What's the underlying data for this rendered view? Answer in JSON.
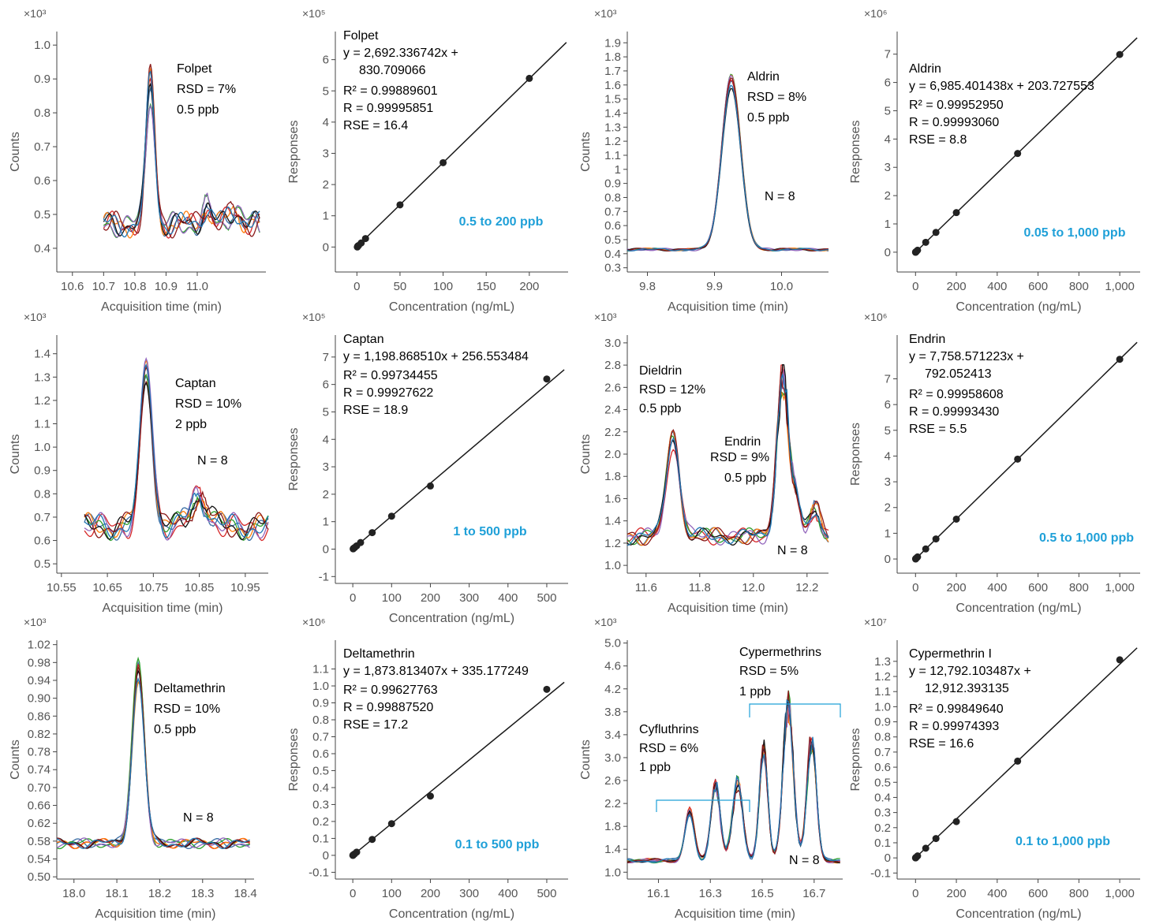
{
  "axis_color": "#444444",
  "tick_color": "#555555",
  "text_color": "#000000",
  "range_color": "#1fa0d8",
  "fit_color": "#1a1a1a",
  "trace_colors": [
    "#3a6ea5",
    "#d62728",
    "#2ca02c",
    "#ff7f0e",
    "#9467bd",
    "#111111",
    "#8b1a1a",
    "#1f77b4"
  ],
  "chart_data": [
    {
      "id": "folpet-chrom",
      "type": "line",
      "chart_kind": "chromatogram",
      "multiplier": "×10³",
      "ylabel": "Counts",
      "xlabel": "Acquisition time (min)",
      "xlim": [
        10.55,
        11.22
      ],
      "ylim": [
        0.33,
        1.04
      ],
      "xticks": [
        10.6,
        10.7,
        10.8,
        10.9,
        11.0
      ],
      "xtick_labels": [
        "10.6",
        "10.7",
        "10.8",
        "10.9",
        "11.0"
      ],
      "yticks": [
        0.4,
        0.5,
        0.6,
        0.7,
        0.8,
        0.9,
        1.0
      ],
      "ytick_labels": [
        "0.4",
        "0.5",
        "0.6",
        "0.7",
        "0.8",
        "0.9",
        "1.0"
      ],
      "trace_range": [
        10.7,
        11.2
      ],
      "baseline": 0.47,
      "noise": 0.04,
      "peaks": [
        {
          "x": 10.85,
          "h": 0.42,
          "w": 0.014
        },
        {
          "x": 11.03,
          "h": 0.05,
          "w": 0.015
        },
        {
          "x": 11.12,
          "h": 0.04,
          "w": 0.02
        }
      ],
      "annotations": [
        "Folpet",
        "RSD = 7%",
        "0.5 ppb"
      ]
    },
    {
      "id": "folpet-cal",
      "type": "scatter",
      "chart_kind": "calibration",
      "multiplier": "×10⁵",
      "ylabel": "Responses",
      "xlabel": "Concentration (ng/mL)",
      "xlim": [
        -25,
        245
      ],
      "ylim": [
        -0.8,
        6.9
      ],
      "xticks": [
        0,
        50,
        100,
        150,
        200
      ],
      "xtick_labels": [
        "0",
        "50",
        "100",
        "150",
        "200"
      ],
      "yticks": [
        0,
        1,
        2,
        3,
        4,
        5,
        6
      ],
      "ytick_labels": [
        "0",
        "1",
        "2",
        "3",
        "4",
        "5",
        "6"
      ],
      "points": [
        [
          0.5,
          0.0
        ],
        [
          1,
          0.03
        ],
        [
          2,
          0.05
        ],
        [
          5,
          0.13
        ],
        [
          10,
          0.27
        ],
        [
          50,
          1.35
        ],
        [
          100,
          2.7
        ],
        [
          200,
          5.4
        ]
      ],
      "fit": {
        "slope": 0.02692336742,
        "intercept": 0.00830709066,
        "x_range": [
          -2,
          243
        ]
      },
      "equation": [
        "Folpet",
        "y = 2,692.336742x +",
        "830.709066",
        "R² = 0.99889601",
        "R = 0.99995851",
        "RSE = 16.4"
      ],
      "range_label": "0.5 to 200 ppb"
    },
    {
      "id": "aldrin-chrom",
      "type": "line",
      "chart_kind": "chromatogram",
      "multiplier": "×10³",
      "ylabel": "Counts",
      "xlabel": "Acquisition time (min)",
      "xlim": [
        9.77,
        10.07
      ],
      "ylim": [
        0.27,
        1.98
      ],
      "xticks": [
        9.8,
        9.9,
        10.0
      ],
      "xtick_labels": [
        "9.8",
        "9.9",
        "10.0"
      ],
      "yticks": [
        0.3,
        0.4,
        0.5,
        0.6,
        0.7,
        0.8,
        0.9,
        1.0,
        1.1,
        1.2,
        1.3,
        1.4,
        1.5,
        1.6,
        1.7,
        1.8,
        1.9
      ],
      "ytick_labels": [
        "0.3",
        "0.4",
        "0.5",
        "0.6",
        "0.7",
        "0.8",
        "0.9",
        "1",
        "1.1",
        "1.2",
        "1.3",
        "1.4",
        "1.5",
        "1.6",
        "1.7",
        "1.8",
        "1.9"
      ],
      "trace_range": [
        9.77,
        10.07
      ],
      "baseline": 0.43,
      "noise": 0.01,
      "peaks": [
        {
          "x": 9.925,
          "h": 1.17,
          "w": 0.014
        }
      ],
      "annotations": [
        "Aldrin",
        "RSD = 8%",
        "0.5 ppb",
        "N = 8"
      ]
    },
    {
      "id": "aldrin-cal",
      "type": "scatter",
      "chart_kind": "calibration",
      "multiplier": "×10⁶",
      "ylabel": "Responses",
      "xlabel": "Concentration (ng/mL)",
      "xlim": [
        -90,
        1100
      ],
      "ylim": [
        -0.7,
        7.8
      ],
      "xticks": [
        0,
        200,
        400,
        600,
        800,
        1000
      ],
      "xtick_labels": [
        "0",
        "200",
        "400",
        "600",
        "800",
        "1,000"
      ],
      "yticks": [
        0,
        1,
        2,
        3,
        4,
        5,
        6,
        7
      ],
      "ytick_labels": [
        "0",
        "1",
        "2",
        "3",
        "4",
        "5",
        "6",
        "7"
      ],
      "points": [
        [
          0.05,
          0.0
        ],
        [
          0.5,
          0.0
        ],
        [
          1,
          0.01
        ],
        [
          2,
          0.01
        ],
        [
          5,
          0.03
        ],
        [
          10,
          0.07
        ],
        [
          50,
          0.35
        ],
        [
          100,
          0.7
        ],
        [
          200,
          1.4
        ],
        [
          500,
          3.49
        ],
        [
          1000,
          6.99
        ]
      ],
      "fit": {
        "slope": 0.006985401438,
        "intercept": 0.000203727553,
        "x_range": [
          -5,
          1085
        ]
      },
      "equation": [
        "Aldrin",
        "y = 6,985.401438x + 203.727553",
        "R² = 0.99952950",
        "R = 0.99993060",
        "RSE = 8.8"
      ],
      "range_label": "0.05 to 1,000 ppb"
    },
    {
      "id": "captan-chrom",
      "type": "line",
      "chart_kind": "chromatogram",
      "multiplier": "×10³",
      "ylabel": "Counts",
      "xlabel": "Acquisition time (min)",
      "xlim": [
        10.54,
        11.0
      ],
      "ylim": [
        0.46,
        1.48
      ],
      "xticks": [
        10.55,
        10.65,
        10.75,
        10.85,
        10.95
      ],
      "xtick_labels": [
        "10.55",
        "10.65",
        "10.75",
        "10.85",
        "10.95"
      ],
      "yticks": [
        0.5,
        0.6,
        0.7,
        0.8,
        0.9,
        1.0,
        1.1,
        1.2,
        1.3,
        1.4
      ],
      "ytick_labels": [
        "0.5",
        "0.6",
        "0.7",
        "0.8",
        "0.9",
        "1.0",
        "1.1",
        "1.2",
        "1.3",
        "1.4"
      ],
      "trace_range": [
        10.6,
        11.0
      ],
      "baseline": 0.66,
      "noise": 0.06,
      "peaks": [
        {
          "x": 10.735,
          "h": 0.66,
          "w": 0.013
        },
        {
          "x": 10.85,
          "h": 0.13,
          "w": 0.018
        }
      ],
      "annotations": [
        "Captan",
        "RSD = 10%",
        "2 ppb",
        "N = 8"
      ]
    },
    {
      "id": "captan-cal",
      "type": "scatter",
      "chart_kind": "calibration",
      "multiplier": "×10⁵",
      "ylabel": "Responses",
      "xlabel": "Concentration (ng/mL)",
      "xlim": [
        -45,
        555
      ],
      "ylim": [
        -1.25,
        7.8
      ],
      "xticks": [
        0,
        100,
        200,
        300,
        400,
        500
      ],
      "xtick_labels": [
        "0",
        "100",
        "200",
        "300",
        "400",
        "500"
      ],
      "yticks": [
        -1,
        0,
        1,
        2,
        3,
        4,
        5,
        6,
        7
      ],
      "ytick_labels": [
        "-1",
        "0",
        "1",
        "2",
        "3",
        "4",
        "5",
        "6",
        "7"
      ],
      "points": [
        [
          1,
          0.01
        ],
        [
          2,
          0.03
        ],
        [
          5,
          0.06
        ],
        [
          10,
          0.12
        ],
        [
          20,
          0.24
        ],
        [
          50,
          0.6
        ],
        [
          100,
          1.2
        ],
        [
          200,
          2.3
        ],
        [
          500,
          6.2
        ]
      ],
      "fit": {
        "slope": 0.0119886851,
        "intercept": 0.00256553484,
        "x_range": [
          -3,
          545
        ]
      },
      "equation": [
        "Captan",
        "y = 1,198.868510x + 256.553484",
        "R² = 0.99734455",
        "R = 0.99927622",
        "RSE = 18.9"
      ],
      "range_label": "1 to 500 ppb"
    },
    {
      "id": "dieldrin-chrom",
      "type": "line",
      "chart_kind": "chromatogram",
      "multiplier": "×10³",
      "ylabel": "Counts",
      "xlabel": "Acquisition time (min)",
      "xlim": [
        11.53,
        12.28
      ],
      "ylim": [
        0.93,
        3.07
      ],
      "xticks": [
        11.6,
        11.8,
        12.0,
        12.2
      ],
      "xtick_labels": [
        "11.6",
        "11.8",
        "12.0",
        "12.2"
      ],
      "yticks": [
        1.0,
        1.2,
        1.4,
        1.6,
        1.8,
        2.0,
        2.2,
        2.4,
        2.6,
        2.8,
        3.0
      ],
      "ytick_labels": [
        "1.0",
        "1.2",
        "1.4",
        "1.6",
        "1.8",
        "2.0",
        "2.2",
        "2.4",
        "2.6",
        "2.8",
        "3.0"
      ],
      "trace_range": [
        11.53,
        12.28
      ],
      "baseline": 1.26,
      "noise": 0.08,
      "peaks": [
        {
          "x": 11.7,
          "h": 0.9,
          "w": 0.024
        },
        {
          "x": 12.11,
          "h": 1.45,
          "w": 0.022
        },
        {
          "x": 12.16,
          "h": 0.3,
          "w": 0.015
        },
        {
          "x": 12.23,
          "h": 0.25,
          "w": 0.02
        }
      ],
      "annotations": [
        "Dieldrin",
        "RSD = 12%",
        "0.5 ppb",
        "Endrin",
        "RSD = 9%",
        "0.5 ppb",
        "N = 8"
      ]
    },
    {
      "id": "endrin-cal",
      "type": "scatter",
      "chart_kind": "calibration",
      "multiplier": "×10⁶",
      "ylabel": "Responses",
      "xlabel": "Concentration (ng/mL)",
      "xlim": [
        -90,
        1100
      ],
      "ylim": [
        -0.55,
        8.7
      ],
      "xticks": [
        0,
        200,
        400,
        600,
        800,
        1000
      ],
      "xtick_labels": [
        "0",
        "200",
        "400",
        "600",
        "800",
        "1,000"
      ],
      "yticks": [
        0,
        1,
        2,
        3,
        4,
        5,
        6,
        7
      ],
      "ytick_labels": [
        "0",
        "1",
        "2",
        "3",
        "4",
        "5",
        "6",
        "7"
      ],
      "points": [
        [
          0.5,
          0.0
        ],
        [
          1,
          0.01
        ],
        [
          2,
          0.02
        ],
        [
          5,
          0.04
        ],
        [
          10,
          0.08
        ],
        [
          50,
          0.39
        ],
        [
          100,
          0.78
        ],
        [
          200,
          1.55
        ],
        [
          500,
          3.88
        ],
        [
          1000,
          7.76
        ]
      ],
      "fit": {
        "slope": 0.007758571223,
        "intercept": 0.000792052413,
        "x_range": [
          -5,
          1085
        ]
      },
      "equation": [
        "Endrin",
        "y = 7,758.571223x +",
        "792.052413",
        "R² = 0.99958608",
        "R = 0.99993430",
        "RSE = 5.5"
      ],
      "range_label": "0.5 to 1,000 ppb"
    },
    {
      "id": "deltamethrin-chrom",
      "type": "line",
      "chart_kind": "chromatogram",
      "multiplier": "×10³",
      "ylabel": "Counts",
      "xlabel": "Acquisition time (min)",
      "xlim": [
        17.96,
        18.42
      ],
      "ylim": [
        0.495,
        1.03
      ],
      "xticks": [
        18.0,
        18.1,
        18.2,
        18.3,
        18.4
      ],
      "xtick_labels": [
        "18.0",
        "18.1",
        "18.2",
        "18.3",
        "18.4"
      ],
      "yticks": [
        0.5,
        0.54,
        0.58,
        0.62,
        0.66,
        0.7,
        0.74,
        0.78,
        0.82,
        0.86,
        0.9,
        0.94,
        0.98,
        1.02
      ],
      "ytick_labels": [
        "0.50",
        "0.54",
        "0.58",
        "0.62",
        "0.66",
        "0.70",
        "0.74",
        "0.78",
        "0.82",
        "0.86",
        "0.90",
        "0.94",
        "0.98",
        "1.02"
      ],
      "trace_range": [
        17.96,
        18.41
      ],
      "baseline": 0.575,
      "noise": 0.012,
      "peaks": [
        {
          "x": 18.15,
          "h": 0.39,
          "w": 0.014
        }
      ],
      "annotations": [
        "Deltamethrin",
        "RSD = 10%",
        "0.5 ppb",
        "N = 8"
      ]
    },
    {
      "id": "deltamethrin-cal",
      "type": "scatter",
      "chart_kind": "calibration",
      "multiplier": "×10⁶",
      "ylabel": "Responses",
      "xlabel": "Concentration (ng/mL)",
      "xlim": [
        -45,
        555
      ],
      "ylim": [
        -0.14,
        1.27
      ],
      "xticks": [
        0,
        100,
        200,
        300,
        400,
        500
      ],
      "xtick_labels": [
        "0",
        "100",
        "200",
        "300",
        "400",
        "500"
      ],
      "yticks": [
        -0.1,
        0,
        0.1,
        0.2,
        0.3,
        0.4,
        0.5,
        0.6,
        0.7,
        0.8,
        0.9,
        1.0,
        1.1
      ],
      "ytick_labels": [
        "-0.1",
        "0",
        "0.1",
        "0.2",
        "0.3",
        "0.4",
        "0.5",
        "0.6",
        "0.7",
        "0.8",
        "0.9",
        "1.0",
        "1.1"
      ],
      "points": [
        [
          0.1,
          0.0
        ],
        [
          0.5,
          0.0
        ],
        [
          1,
          0.002
        ],
        [
          2,
          0.004
        ],
        [
          5,
          0.009
        ],
        [
          10,
          0.019
        ],
        [
          50,
          0.094
        ],
        [
          100,
          0.187
        ],
        [
          200,
          0.35
        ],
        [
          500,
          0.98
        ]
      ],
      "fit": {
        "slope": 0.001873813407,
        "intercept": 0.000335177249,
        "x_range": [
          -3,
          545
        ]
      },
      "equation": [
        "Deltamethrin",
        "y = 1,873.813407x + 335.177249",
        "R² = 0.99627763",
        "R = 0.99887520",
        "RSE = 17.2"
      ],
      "range_label": "0.1 to 500 ppb"
    },
    {
      "id": "cypermethrin-chrom",
      "type": "line",
      "chart_kind": "chromatogram",
      "multiplier": "×10³",
      "ylabel": "Counts",
      "xlabel": "Acquisition time (min)",
      "xlim": [
        15.98,
        16.81
      ],
      "ylim": [
        0.88,
        5.05
      ],
      "xticks": [
        16.1,
        16.3,
        16.5,
        16.7
      ],
      "xtick_labels": [
        "16.1",
        "16.3",
        "16.5",
        "16.7"
      ],
      "yticks": [
        1.0,
        1.4,
        1.8,
        2.2,
        2.6,
        3.0,
        3.4,
        3.8,
        4.2,
        4.6,
        5.0
      ],
      "ytick_labels": [
        "1.0",
        "1.4",
        "1.8",
        "2.2",
        "2.6",
        "3.0",
        "3.4",
        "3.8",
        "4.2",
        "4.6",
        "5.0"
      ],
      "trace_range": [
        15.98,
        16.8
      ],
      "baseline": 1.2,
      "noise": 0.04,
      "peaks": [
        {
          "x": 16.22,
          "h": 0.85,
          "w": 0.018
        },
        {
          "x": 16.32,
          "h": 1.3,
          "w": 0.018
        },
        {
          "x": 16.405,
          "h": 1.35,
          "w": 0.02
        },
        {
          "x": 16.505,
          "h": 1.95,
          "w": 0.016
        },
        {
          "x": 16.6,
          "h": 2.7,
          "w": 0.02
        },
        {
          "x": 16.69,
          "h": 2.1,
          "w": 0.018
        }
      ],
      "annotations": [
        "Cyfluthrins",
        "RSD = 6%",
        "1 ppb",
        "Cypermethrins",
        "RSD = 5%",
        "1 ppb",
        "N = 8"
      ]
    },
    {
      "id": "cypermethrin-cal",
      "type": "scatter",
      "chart_kind": "calibration",
      "multiplier": "×10⁷",
      "ylabel": "Responses",
      "xlabel": "Concentration (ng/mL)",
      "xlim": [
        -90,
        1100
      ],
      "ylim": [
        -0.14,
        1.44
      ],
      "xticks": [
        0,
        200,
        400,
        600,
        800,
        1000
      ],
      "xtick_labels": [
        "0",
        "200",
        "400",
        "600",
        "800",
        "1,000"
      ],
      "yticks": [
        -0.1,
        0,
        0.1,
        0.2,
        0.3,
        0.4,
        0.5,
        0.6,
        0.7,
        0.8,
        0.9,
        1.0,
        1.1,
        1.2,
        1.3
      ],
      "ytick_labels": [
        "-0.1",
        "0",
        "0.1",
        "0.2",
        "0.3",
        "0.4",
        "0.5",
        "0.6",
        "0.7",
        "0.8",
        "0.9",
        "1.0",
        "1.1",
        "1.2",
        "1.3"
      ],
      "points": [
        [
          0.1,
          0.0
        ],
        [
          1,
          0.001
        ],
        [
          2,
          0.003
        ],
        [
          5,
          0.006
        ],
        [
          10,
          0.013
        ],
        [
          50,
          0.064
        ],
        [
          100,
          0.128
        ],
        [
          200,
          0.24
        ],
        [
          500,
          0.64
        ],
        [
          1000,
          1.31
        ]
      ],
      "fit": {
        "slope": 0.0012792103487,
        "intercept": 0.0012912393135,
        "x_range": [
          -5,
          1085
        ]
      },
      "equation": [
        "Cypermethrin I",
        "y = 12,792.103487x +",
        "12,912.393135",
        "R² = 0.99849640",
        "R = 0.99974393",
        "RSE = 16.6"
      ],
      "range_label": "0.1 to 1,000 ppb"
    }
  ]
}
